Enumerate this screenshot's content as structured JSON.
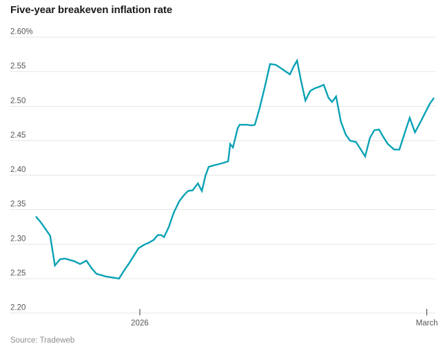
{
  "header": {
    "title": "Five-year breakeven inflation rate"
  },
  "footer": {
    "source": "Source: Tradeweb"
  },
  "colors": {
    "line": "#08a1b4",
    "grid": "#e4e4e4",
    "title": "#1a1a1a",
    "axis_label": "#565656",
    "tick": "#3a3a3a",
    "source": "#8e8e8e",
    "background": "#ffffff"
  },
  "chart_data": {
    "type": "line",
    "title": "Five-year breakeven inflation rate",
    "xlabel": "",
    "ylabel": "",
    "unit": "%",
    "ylim": [
      2.2,
      2.6
    ],
    "grid": true,
    "legend_position": "none",
    "y_ticks": [
      {
        "value": 2.6,
        "label": "2.60%"
      },
      {
        "value": 2.55,
        "label": "2.55"
      },
      {
        "value": 2.5,
        "label": "2.50"
      },
      {
        "value": 2.45,
        "label": "2.45"
      },
      {
        "value": 2.4,
        "label": "2.40"
      },
      {
        "value": 2.35,
        "label": "2.35"
      },
      {
        "value": 2.3,
        "label": "2.30"
      },
      {
        "value": 2.25,
        "label": "2.25"
      },
      {
        "value": 2.2,
        "label": "2.20"
      }
    ],
    "x_ticks": [
      {
        "pos": 0.261,
        "label": "2026"
      },
      {
        "pos": 0.982,
        "label": "March"
      }
    ],
    "series": [
      {
        "name": "Five-year breakeven inflation rate",
        "color": "#08a1b4",
        "points": [
          [
            0.0,
            2.34
          ],
          [
            0.012,
            2.332
          ],
          [
            0.024,
            2.322
          ],
          [
            0.036,
            2.312
          ],
          [
            0.048,
            2.269
          ],
          [
            0.061,
            2.278
          ],
          [
            0.073,
            2.279
          ],
          [
            0.085,
            2.277
          ],
          [
            0.097,
            2.275
          ],
          [
            0.111,
            2.271
          ],
          [
            0.127,
            2.276
          ],
          [
            0.14,
            2.265
          ],
          [
            0.152,
            2.257
          ],
          [
            0.164,
            2.255
          ],
          [
            0.176,
            2.253
          ],
          [
            0.188,
            2.252
          ],
          [
            0.199,
            2.251
          ],
          [
            0.209,
            2.25
          ],
          [
            0.221,
            2.261
          ],
          [
            0.234,
            2.272
          ],
          [
            0.246,
            2.283
          ],
          [
            0.258,
            2.294
          ],
          [
            0.272,
            2.299
          ],
          [
            0.284,
            2.302
          ],
          [
            0.296,
            2.306
          ],
          [
            0.306,
            2.313
          ],
          [
            0.315,
            2.313
          ],
          [
            0.322,
            2.31
          ],
          [
            0.334,
            2.325
          ],
          [
            0.346,
            2.345
          ],
          [
            0.36,
            2.362
          ],
          [
            0.372,
            2.371
          ],
          [
            0.382,
            2.377
          ],
          [
            0.394,
            2.378
          ],
          [
            0.407,
            2.388
          ],
          [
            0.417,
            2.377
          ],
          [
            0.426,
            2.399
          ],
          [
            0.434,
            2.412
          ],
          [
            0.446,
            2.414
          ],
          [
            0.46,
            2.416
          ],
          [
            0.472,
            2.418
          ],
          [
            0.483,
            2.42
          ],
          [
            0.488,
            2.445
          ],
          [
            0.495,
            2.44
          ],
          [
            0.507,
            2.468
          ],
          [
            0.512,
            2.473
          ],
          [
            0.529,
            2.473
          ],
          [
            0.543,
            2.472
          ],
          [
            0.55,
            2.473
          ],
          [
            0.562,
            2.497
          ],
          [
            0.576,
            2.53
          ],
          [
            0.588,
            2.561
          ],
          [
            0.602,
            2.56
          ],
          [
            0.618,
            2.554
          ],
          [
            0.628,
            2.55
          ],
          [
            0.638,
            2.546
          ],
          [
            0.647,
            2.557
          ],
          [
            0.656,
            2.566
          ],
          [
            0.666,
            2.537
          ],
          [
            0.677,
            2.508
          ],
          [
            0.689,
            2.522
          ],
          [
            0.701,
            2.526
          ],
          [
            0.711,
            2.528
          ],
          [
            0.723,
            2.531
          ],
          [
            0.735,
            2.512
          ],
          [
            0.744,
            2.506
          ],
          [
            0.754,
            2.514
          ],
          [
            0.766,
            2.478
          ],
          [
            0.778,
            2.459
          ],
          [
            0.789,
            2.45
          ],
          [
            0.804,
            2.448
          ],
          [
            0.815,
            2.438
          ],
          [
            0.827,
            2.427
          ],
          [
            0.839,
            2.454
          ],
          [
            0.85,
            2.465
          ],
          [
            0.862,
            2.466
          ],
          [
            0.872,
            2.456
          ],
          [
            0.884,
            2.445
          ],
          [
            0.9,
            2.437
          ],
          [
            0.913,
            2.437
          ],
          [
            0.924,
            2.457
          ],
          [
            0.939,
            2.483
          ],
          [
            0.952,
            2.462
          ],
          [
            0.965,
            2.476
          ],
          [
            0.979,
            2.492
          ],
          [
            0.99,
            2.504
          ],
          [
            1.0,
            2.512
          ]
        ]
      }
    ]
  }
}
